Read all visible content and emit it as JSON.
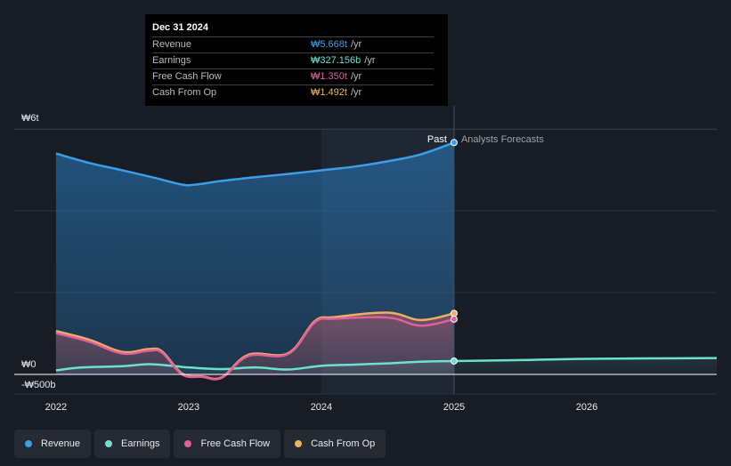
{
  "tooltip": {
    "date": "Dec 31 2024",
    "rows": [
      {
        "label": "Revenue",
        "value": "₩5.668t",
        "unit": "/yr",
        "color": "#3a9fe8"
      },
      {
        "label": "Earnings",
        "value": "₩327.156b",
        "unit": "/yr",
        "color": "#6ee0cf"
      },
      {
        "label": "Free Cash Flow",
        "value": "₩1.350t",
        "unit": "/yr",
        "color": "#e0609e"
      },
      {
        "label": "Cash From Op",
        "value": "₩1.492t",
        "unit": "/yr",
        "color": "#f0b060"
      }
    ]
  },
  "legend": [
    {
      "label": "Revenue",
      "color": "#3a9fe8"
    },
    {
      "label": "Earnings",
      "color": "#6ee0cf"
    },
    {
      "label": "Free Cash Flow",
      "color": "#e0609e"
    },
    {
      "label": "Cash From Op",
      "color": "#f0b060"
    }
  ],
  "chart_data": {
    "type": "line",
    "y_unit": "KRW",
    "ylim": [
      -500,
      6000
    ],
    "y_tick_labels": [
      {
        "value": 6000,
        "label": "₩6t"
      },
      {
        "value": 0,
        "label": "₩0"
      },
      {
        "value": -500,
        "label": "-₩500b"
      }
    ],
    "xlim": [
      2021.9,
      2026.98
    ],
    "x_tick_labels": [
      "2022",
      "2023",
      "2024",
      "2025",
      "2026"
    ],
    "x_tick_values": [
      2022,
      2023,
      2024,
      2025,
      2026
    ],
    "past_label": "Past",
    "forecast_label": "Analysts Forecasts",
    "past_end": 2025.0,
    "highlight_start": 2024.0,
    "series": [
      {
        "name": "Revenue",
        "color": "#3a9fe8",
        "points": [
          [
            2022.0,
            5400
          ],
          [
            2022.25,
            5170
          ],
          [
            2022.5,
            4990
          ],
          [
            2022.75,
            4800
          ],
          [
            2022.95,
            4640
          ],
          [
            2023.05,
            4640
          ],
          [
            2023.25,
            4730
          ],
          [
            2023.5,
            4820
          ],
          [
            2023.75,
            4900
          ],
          [
            2024.0,
            4990
          ],
          [
            2024.25,
            5080
          ],
          [
            2024.5,
            5210
          ],
          [
            2024.75,
            5380
          ],
          [
            2025.0,
            5668
          ]
        ]
      },
      {
        "name": "Earnings",
        "color": "#6ee0cf",
        "points": [
          [
            2022.0,
            100
          ],
          [
            2022.2,
            170
          ],
          [
            2022.5,
            200
          ],
          [
            2022.7,
            250
          ],
          [
            2022.9,
            200
          ],
          [
            2023.0,
            170
          ],
          [
            2023.25,
            130
          ],
          [
            2023.5,
            170
          ],
          [
            2023.75,
            120
          ],
          [
            2024.0,
            210
          ],
          [
            2024.25,
            240
          ],
          [
            2024.5,
            270
          ],
          [
            2024.75,
            310
          ],
          [
            2025.0,
            327.156
          ],
          [
            2025.5,
            350
          ],
          [
            2026.0,
            380
          ],
          [
            2026.98,
            400
          ]
        ]
      },
      {
        "name": "Free Cash Flow",
        "color": "#e0609e",
        "points": [
          [
            2022.0,
            1010
          ],
          [
            2022.25,
            800
          ],
          [
            2022.5,
            510
          ],
          [
            2022.7,
            580
          ],
          [
            2022.8,
            530
          ],
          [
            2022.95,
            0
          ],
          [
            2023.1,
            -60
          ],
          [
            2023.25,
            -80
          ],
          [
            2023.45,
            450
          ],
          [
            2023.75,
            500
          ],
          [
            2023.95,
            1270
          ],
          [
            2024.1,
            1360
          ],
          [
            2024.5,
            1390
          ],
          [
            2024.75,
            1190
          ],
          [
            2025.0,
            1350
          ]
        ]
      },
      {
        "name": "Cash From Op",
        "color": "#f0b060",
        "points": [
          [
            2022.0,
            1060
          ],
          [
            2022.25,
            850
          ],
          [
            2022.5,
            550
          ],
          [
            2022.7,
            620
          ],
          [
            2022.8,
            560
          ],
          [
            2022.95,
            20
          ],
          [
            2023.1,
            -50
          ],
          [
            2023.25,
            -70
          ],
          [
            2023.45,
            480
          ],
          [
            2023.75,
            520
          ],
          [
            2023.95,
            1300
          ],
          [
            2024.1,
            1400
          ],
          [
            2024.5,
            1510
          ],
          [
            2024.75,
            1330
          ],
          [
            2025.0,
            1492
          ]
        ]
      }
    ]
  }
}
